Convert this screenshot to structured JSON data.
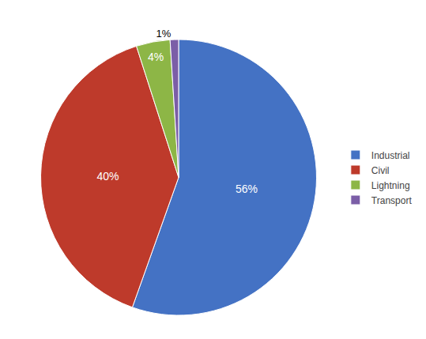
{
  "chart_data": {
    "type": "pie",
    "categories": [
      "Industrial",
      "Civil",
      "Lightning",
      "Transport"
    ],
    "values": [
      56,
      40,
      4,
      1
    ],
    "value_labels": [
      "56%",
      "40%",
      "4%",
      "1%"
    ],
    "colors": [
      "#4472C4",
      "#BE3A2B",
      "#8DB646",
      "#7B5EA7"
    ],
    "data_labels": true,
    "legend": "right"
  }
}
